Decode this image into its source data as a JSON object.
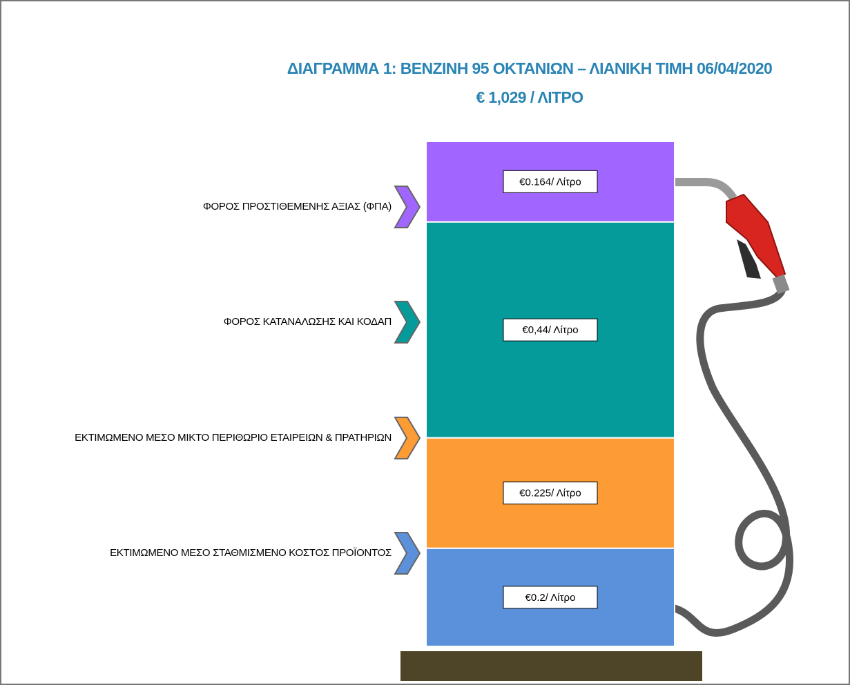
{
  "chart_data": {
    "type": "stacked-bar",
    "title": "ΔΙΑΓΡΑΜΜΑ 1: ΒΕΝΖΙΝΗ 95 ΟΚΤΑΝΙΩΝ – ΛΙΑΝΙΚΗ ΤΙΜΗ 06/04/2020",
    "subtitle": "€ 1,029 / ΛΙΤΡΟ",
    "series": [
      {
        "name": "ΕΚΤΙΜΩΜΕΝΟ ΜΕΣΟ ΣΤΑΘΜΙΣΜΕΝΟ ΚΟΣΤΟΣ ΠΡΟΪΟΝΤΟΣ",
        "color": "#5b90da",
        "values": [
          0.2
        ],
        "value_labels": [
          "€0.2/ Λίτρο"
        ]
      },
      {
        "name": "ΕΚΤΙΜΩΜΕΝΟ ΜΕΣΟ ΜΙΚΤΟ ΠΕΡΙΘΩΡΙΟ ΕΤΑΙΡΕΙΩΝ & ΠΡΑΤΗΡΙΩΝ",
        "color": "#fd9b35",
        "values": [
          0.225
        ],
        "value_labels": [
          "€0.225/ Λίτρο"
        ]
      },
      {
        "name": "ΦΟΡΟΣ ΚΑΤΑΝΑΛΩΣΗΣ ΚΑΙ ΚΟΔΑΠ",
        "color": "#069b9b",
        "values": [
          0.44
        ],
        "value_labels": [
          "€0,44/ Λίτρο"
        ]
      },
      {
        "name": "ΦΟΡΟΣ ΠΡΟΣΤΙΘΕΜΕΝΗΣ ΑΞΙΑΣ (ΦΠΑ)",
        "color": "#a066ff",
        "values": [
          0.164
        ],
        "value_labels": [
          "€0.164/ Λίτρο"
        ]
      }
    ]
  }
}
